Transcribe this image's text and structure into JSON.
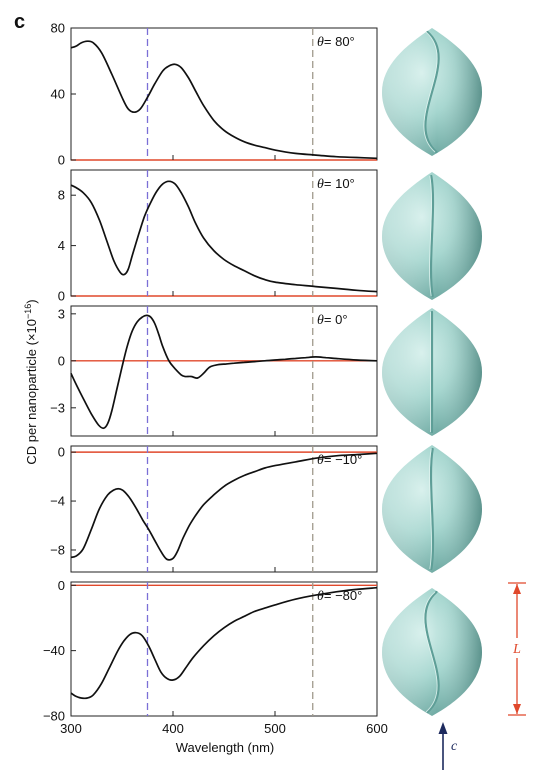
{
  "panel_label": "c",
  "xlabel": "Wavelength (nm)",
  "ylabel_text": "CD per nanoparticle (×10",
  "ylabel_exp": "−16",
  "ylabel_close": ")",
  "theta_symbol": "θ",
  "dimension_label": "L",
  "axis_label": "c",
  "colors": {
    "curve": "#111111",
    "zero_line": "#e0482b",
    "purple_dash": "#7b6fd6",
    "gray_dash": "#a09a8c",
    "particle": "#8ec9c2",
    "particle_dark": "#5e9e97",
    "arrow_navy": "#1d2a5e",
    "dim_red": "#e0482b"
  },
  "chart_data": [
    {
      "type": "line",
      "label": "= 80°",
      "xlim": [
        300,
        600
      ],
      "ylim": [
        0,
        80
      ],
      "yticks": [
        0,
        40,
        80
      ],
      "ytick_labels": [
        "0",
        "40",
        "80"
      ],
      "x": [
        300,
        305,
        310,
        316,
        322,
        330,
        340,
        350,
        356,
        362,
        368,
        375,
        382,
        390,
        396,
        402,
        408,
        415,
        422,
        430,
        440,
        450,
        460,
        470,
        480,
        490,
        500,
        520,
        540,
        560,
        580,
        600
      ],
      "y": [
        68,
        69,
        71,
        72,
        71,
        65,
        52,
        38,
        31,
        29,
        31,
        38,
        46,
        54,
        57,
        58,
        56,
        50,
        42,
        33,
        24,
        18,
        14,
        11,
        9,
        7.5,
        6,
        4,
        3,
        2,
        1.5,
        1
      ]
    },
    {
      "type": "line",
      "label": "= 10°",
      "xlim": [
        300,
        600
      ],
      "ylim": [
        0,
        10
      ],
      "yticks": [
        0,
        4,
        8
      ],
      "ytick_labels": [
        "0",
        "4",
        "8"
      ],
      "x": [
        300,
        305,
        312,
        320,
        328,
        335,
        342,
        348,
        352,
        356,
        360,
        366,
        372,
        378,
        384,
        390,
        396,
        402,
        408,
        415,
        422,
        430,
        440,
        450,
        460,
        470,
        480,
        490,
        500,
        520,
        540,
        560,
        580,
        600
      ],
      "y": [
        8.8,
        8.6,
        8.2,
        7.4,
        6.0,
        4.4,
        2.8,
        1.9,
        1.7,
        2.1,
        3.2,
        4.8,
        6.3,
        7.4,
        8.3,
        8.9,
        9.1,
        8.9,
        8.2,
        7.1,
        5.8,
        4.6,
        3.6,
        2.9,
        2.4,
        2.0,
        1.6,
        1.3,
        1.1,
        0.9,
        0.75,
        0.6,
        0.45,
        0.35
      ]
    },
    {
      "type": "line",
      "label": "= 0°",
      "xlim": [
        300,
        600
      ],
      "ylim": [
        -4.8,
        3.5
      ],
      "yticks": [
        -3,
        0,
        3
      ],
      "ytick_labels": [
        "−3",
        "0",
        "3"
      ],
      "x": [
        300,
        305,
        312,
        320,
        327,
        332,
        336,
        340,
        345,
        350,
        355,
        360,
        365,
        370,
        374,
        378,
        382,
        386,
        390,
        396,
        402,
        408,
        412,
        418,
        424,
        430,
        436,
        444,
        452,
        460,
        470,
        480,
        490,
        500,
        510,
        520,
        530,
        540,
        550,
        560,
        580,
        600
      ],
      "y": [
        -0.8,
        -1.5,
        -2.4,
        -3.4,
        -4.1,
        -4.3,
        -4.0,
        -3.2,
        -1.8,
        -0.4,
        0.9,
        1.9,
        2.5,
        2.8,
        2.9,
        2.8,
        2.4,
        1.7,
        0.9,
        0.0,
        -0.5,
        -0.9,
        -1.0,
        -1.0,
        -1.1,
        -0.8,
        -0.4,
        -0.25,
        -0.2,
        -0.15,
        -0.1,
        -0.05,
        0.0,
        0.05,
        0.1,
        0.15,
        0.2,
        0.25,
        0.2,
        0.15,
        0.05,
        0.0
      ]
    },
    {
      "type": "line",
      "label": "= −10°",
      "xlim": [
        300,
        600
      ],
      "ylim": [
        -9.8,
        0.5
      ],
      "yticks": [
        -8,
        -4,
        0
      ],
      "ytick_labels": [
        "−8",
        "−4",
        "0"
      ],
      "x": [
        300,
        305,
        312,
        320,
        328,
        336,
        342,
        347,
        352,
        358,
        364,
        370,
        376,
        382,
        388,
        393,
        397,
        401,
        405,
        410,
        416,
        422,
        430,
        440,
        450,
        460,
        470,
        480,
        490,
        500,
        520,
        540,
        560,
        580,
        600
      ],
      "y": [
        -8.6,
        -8.5,
        -7.9,
        -6.3,
        -4.6,
        -3.5,
        -3.1,
        -3.0,
        -3.2,
        -3.8,
        -4.6,
        -5.5,
        -6.3,
        -7.2,
        -8.1,
        -8.7,
        -8.8,
        -8.6,
        -8.0,
        -7.0,
        -6.0,
        -5.2,
        -4.3,
        -3.5,
        -2.8,
        -2.3,
        -1.9,
        -1.6,
        -1.3,
        -1.1,
        -0.8,
        -0.5,
        -0.3,
        -0.2,
        -0.1
      ]
    },
    {
      "type": "line",
      "label": "= −80°",
      "xlim": [
        300,
        600
      ],
      "ylim": [
        -80,
        2
      ],
      "yticks": [
        -80,
        -40,
        0
      ],
      "ytick_labels": [
        "−80",
        "−40",
        "0"
      ],
      "x": [
        300,
        305,
        310,
        316,
        322,
        330,
        338,
        346,
        352,
        358,
        364,
        370,
        376,
        382,
        388,
        394,
        400,
        406,
        412,
        420,
        430,
        440,
        450,
        460,
        470,
        480,
        490,
        500,
        520,
        540,
        560,
        580,
        600
      ],
      "y": [
        -66,
        -68,
        -69,
        -69,
        -67,
        -60,
        -50,
        -40,
        -34,
        -30,
        -29,
        -31,
        -37,
        -45,
        -53,
        -57,
        -58,
        -56,
        -51,
        -44,
        -37,
        -31,
        -26,
        -22,
        -19,
        -16,
        -14,
        -12,
        -8.5,
        -6,
        -4,
        -2.5,
        -1.5
      ]
    }
  ],
  "shared_x": {
    "xlim": [
      300,
      600
    ],
    "xticks": [
      300,
      400,
      500,
      600
    ],
    "xtick_labels": [
      "300",
      "400",
      "500",
      "600"
    ]
  },
  "reference_lines_x": {
    "purple": 375,
    "gray": 537
  }
}
